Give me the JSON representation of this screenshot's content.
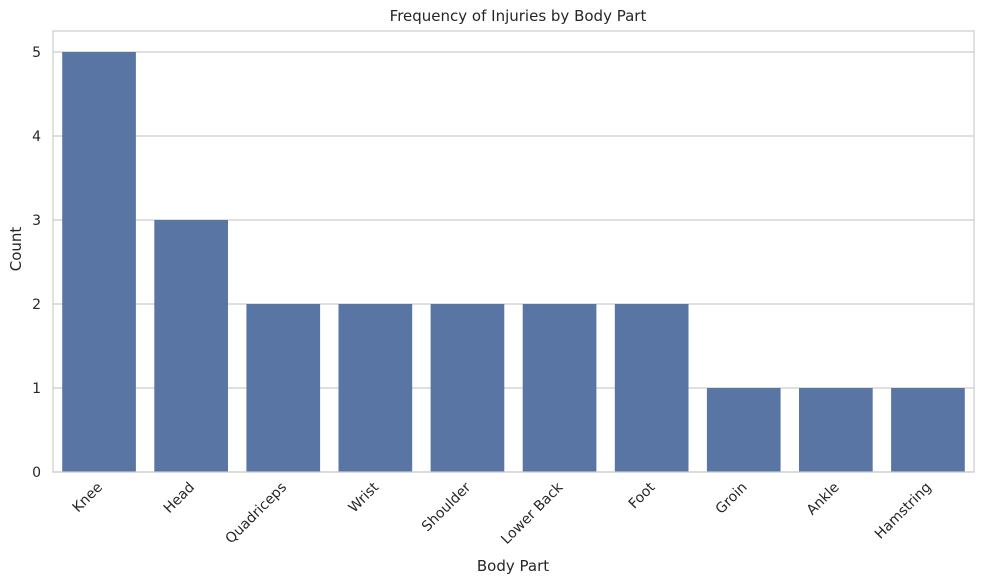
{
  "chart_data": {
    "type": "bar",
    "title": "Frequency of Injuries by Body Part",
    "xlabel": "Body Part",
    "ylabel": "Count",
    "categories": [
      "Knee",
      "Head",
      "Quadriceps",
      "Wrist",
      "Shoulder",
      "Lower Back",
      "Foot",
      "Groin",
      "Ankle",
      "Hamstring"
    ],
    "values": [
      5,
      3,
      2,
      2,
      2,
      2,
      2,
      1,
      1,
      1
    ],
    "ylim": [
      0,
      5.25
    ],
    "yticks": [
      0,
      1,
      2,
      3,
      4,
      5
    ],
    "grid": true,
    "bar_color": "#5975a4",
    "grid_color": "#cccccc",
    "background_color": "#ffffff"
  }
}
